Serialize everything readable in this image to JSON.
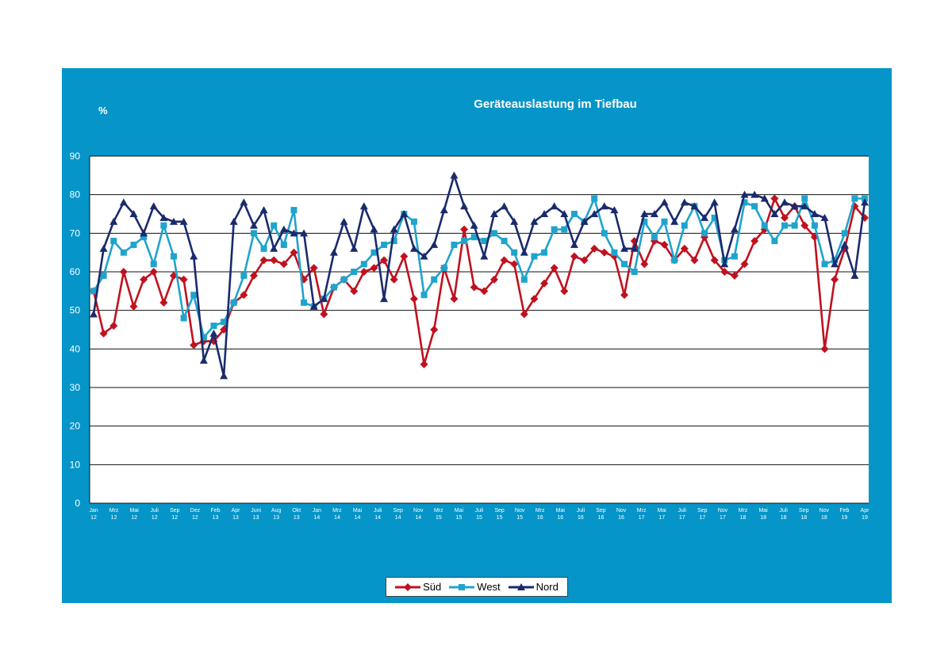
{
  "chart_data": {
    "type": "line",
    "title": "Geräteauslastung im Tiefbau",
    "ylabel": "%",
    "ylim": [
      0,
      90
    ],
    "yticks": [
      0,
      10,
      20,
      30,
      40,
      50,
      60,
      70,
      80,
      90
    ],
    "grid": true,
    "legend_position": "bottom",
    "xticks": [
      {
        "month": "Jan",
        "year": "12"
      },
      {
        "month": "Mrz",
        "year": "12"
      },
      {
        "month": "Mai",
        "year": "12"
      },
      {
        "month": "Juli",
        "year": "12"
      },
      {
        "month": "Sep",
        "year": "12"
      },
      {
        "month": "Dez",
        "year": "12"
      },
      {
        "month": "Feb",
        "year": "13"
      },
      {
        "month": "Apr",
        "year": "13"
      },
      {
        "month": "Juni",
        "year": "13"
      },
      {
        "month": "Aug",
        "year": "13"
      },
      {
        "month": "Okt",
        "year": "13"
      },
      {
        "month": "Jan",
        "year": "14"
      },
      {
        "month": "Mrz",
        "year": "14"
      },
      {
        "month": "Mai",
        "year": "14"
      },
      {
        "month": "Juli",
        "year": "14"
      },
      {
        "month": "Sep",
        "year": "14"
      },
      {
        "month": "Nov",
        "year": "14"
      },
      {
        "month": "Mrz",
        "year": "15"
      },
      {
        "month": "Mai",
        "year": "15"
      },
      {
        "month": "Juli",
        "year": "15"
      },
      {
        "month": "Sep",
        "year": "15"
      },
      {
        "month": "Nov",
        "year": "15"
      },
      {
        "month": "Mrz",
        "year": "16"
      },
      {
        "month": "Mai",
        "year": "16"
      },
      {
        "month": "Juli",
        "year": "16"
      },
      {
        "month": "Sep",
        "year": "16"
      },
      {
        "month": "Nov",
        "year": "16"
      },
      {
        "month": "Mrz",
        "year": "17"
      },
      {
        "month": "Mai",
        "year": "17"
      },
      {
        "month": "Juli",
        "year": "17"
      },
      {
        "month": "Sep",
        "year": "17"
      },
      {
        "month": "Nov",
        "year": "17"
      },
      {
        "month": "Mrz",
        "year": "18"
      },
      {
        "month": "Mai",
        "year": "18"
      },
      {
        "month": "Juli",
        "year": "18"
      },
      {
        "month": "Sep",
        "year": "18"
      },
      {
        "month": "Nov",
        "year": "18"
      },
      {
        "month": "Feb",
        "year": "19"
      },
      {
        "month": "Apr",
        "year": "19"
      }
    ],
    "series": [
      {
        "name": "Süd",
        "color": "#c0111f",
        "marker": "diamond",
        "values": [
          55,
          44,
          46,
          60,
          51,
          58,
          60,
          52,
          59,
          58,
          41,
          42,
          42,
          45,
          52,
          54,
          59,
          63,
          63,
          62,
          65,
          58,
          61,
          49,
          56,
          58,
          55,
          60,
          61,
          63,
          58,
          64,
          53,
          36,
          45,
          61,
          53,
          71,
          56,
          55,
          58,
          63,
          62,
          49,
          53,
          57,
          61,
          55,
          64,
          63,
          66,
          65,
          64,
          54,
          68,
          62,
          68,
          67,
          63,
          66,
          63,
          69,
          63,
          60,
          59,
          62,
          68,
          71,
          79,
          74,
          77,
          72,
          69,
          40,
          58,
          66,
          77,
          74
        ]
      },
      {
        "name": "West",
        "color": "#1fa4cc",
        "marker": "square",
        "values": [
          55,
          59,
          68,
          65,
          67,
          69,
          62,
          72,
          64,
          48,
          54,
          43,
          46,
          47,
          52,
          59,
          70,
          66,
          72,
          67,
          76,
          52,
          51,
          53,
          56,
          58,
          60,
          62,
          65,
          67,
          68,
          75,
          73,
          54,
          58,
          61,
          67,
          68,
          69,
          68,
          70,
          68,
          65,
          58,
          64,
          65,
          71,
          71,
          75,
          73,
          79,
          70,
          65,
          62,
          60,
          73,
          69,
          73,
          63,
          72,
          77,
          70,
          74,
          63,
          64,
          78,
          77,
          72,
          68,
          72,
          72,
          79,
          72,
          62,
          63,
          70,
          79,
          79
        ]
      },
      {
        "name": "Nord",
        "color": "#1a2a6c",
        "marker": "triangle",
        "values": [
          49,
          66,
          73,
          78,
          75,
          70,
          77,
          74,
          73,
          73,
          64,
          37,
          44,
          33,
          73,
          78,
          72,
          76,
          66,
          71,
          70,
          70,
          51,
          53,
          65,
          73,
          66,
          77,
          71,
          53,
          71,
          75,
          66,
          64,
          67,
          76,
          85,
          77,
          72,
          64,
          75,
          77,
          73,
          65,
          73,
          75,
          77,
          75,
          67,
          73,
          75,
          77,
          76,
          66,
          66,
          75,
          75,
          78,
          73,
          78,
          77,
          74,
          78,
          62,
          71,
          80,
          80,
          79,
          75,
          78,
          77,
          77,
          75,
          74,
          62,
          67,
          59,
          78
        ]
      }
    ]
  }
}
